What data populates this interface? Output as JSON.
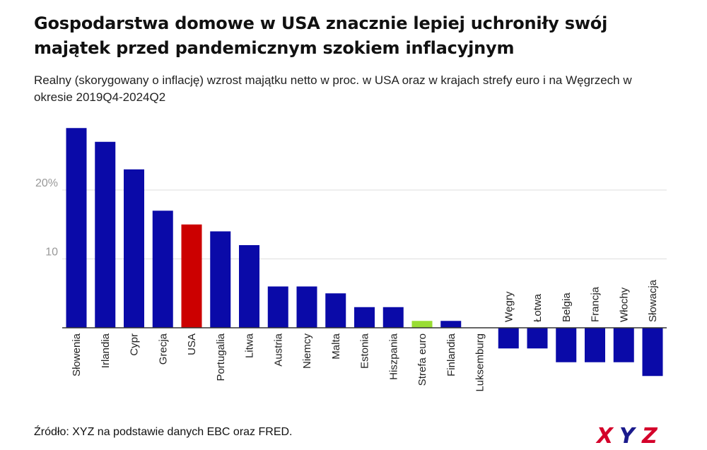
{
  "header": {
    "title": "Gospodarstwa domowe w USA znacznie lepiej uchroniły swój majątek przed pandemicznym szokiem inflacyjnym",
    "subtitle": "Realny (skorygowany o inflację) wzrost majątku netto w proc. w USA oraz w krajach strefy euro i na Węgrzech w okresie 2019Q4-2024Q2"
  },
  "footer": {
    "source": "Źródło: XYZ na podstawie danych EBC oraz FRED.",
    "logo_text": "XYZ"
  },
  "colors": {
    "default_bar": "#0a0aa8",
    "usa_bar": "#cc0000",
    "euro_area_bar": "#99dd33",
    "grid": "#dddddd",
    "axis": "#333333",
    "tick_text": "#999999",
    "logo_blue": "#1a1a8c",
    "logo_red": "#d4002a"
  },
  "chart_data": {
    "type": "bar",
    "categories": [
      "Słowenia",
      "Irlandia",
      "Cypr",
      "Grecja",
      "USA",
      "Portugalia",
      "Litwa",
      "Austria",
      "Niemcy",
      "Malta",
      "Estonia",
      "Hiszpania",
      "Strefa euro",
      "Finlandia",
      "Luksemburg",
      "Węgry",
      "Łotwa",
      "Belgia",
      "Francja",
      "Włochy",
      "Słowacja"
    ],
    "values": [
      29,
      27,
      23,
      17,
      15,
      14,
      12,
      6,
      6,
      5,
      3,
      3,
      1,
      1,
      0,
      -3,
      -3,
      -5,
      -5,
      -5,
      -7
    ],
    "highlight": {
      "USA": "usa_bar",
      "Strefa euro": "euro_area_bar"
    },
    "yticks": [
      {
        "value": 10,
        "label": "10"
      },
      {
        "value": 20,
        "label": "20%"
      }
    ],
    "ylim": [
      -10,
      30
    ],
    "grid": true,
    "legend": "none"
  }
}
